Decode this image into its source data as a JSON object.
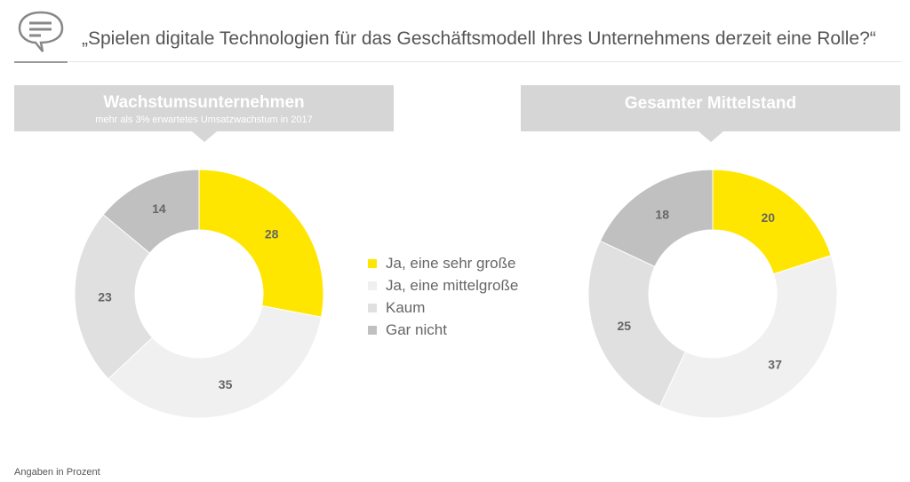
{
  "title": "„Spielen digitale Technologien für das Geschäftsmodell Ihres Unternehmens derzeit eine Rolle?“",
  "footnote": "Angaben in Prozent",
  "chart_data": [
    {
      "type": "pie",
      "variant": "donut",
      "title": "Wachstumsunternehmen",
      "subtitle": "mehr als 3% erwartetes Umsatzwachstum in 2017",
      "categories": [
        "Ja, eine sehr große",
        "Ja, eine mittelgroße",
        "Kaum",
        "Gar nicht"
      ],
      "values": [
        28,
        35,
        23,
        14
      ]
    },
    {
      "type": "pie",
      "variant": "donut",
      "title": "Gesamter Mittelstand",
      "categories": [
        "Ja, eine sehr große",
        "Ja, eine mittelgroße",
        "Kaum",
        "Gar nicht"
      ],
      "values": [
        20,
        37,
        25,
        18
      ]
    }
  ],
  "legend": {
    "placement": "center",
    "items": [
      {
        "label": "Ja, eine sehr große",
        "color": "#FFE600"
      },
      {
        "label": "Ja, eine mittelgroße",
        "color": "#F0F0F0"
      },
      {
        "label": "Kaum",
        "color": "#E0E0E0"
      },
      {
        "label": "Gar nicht",
        "color": "#C0C0C0"
      }
    ]
  }
}
